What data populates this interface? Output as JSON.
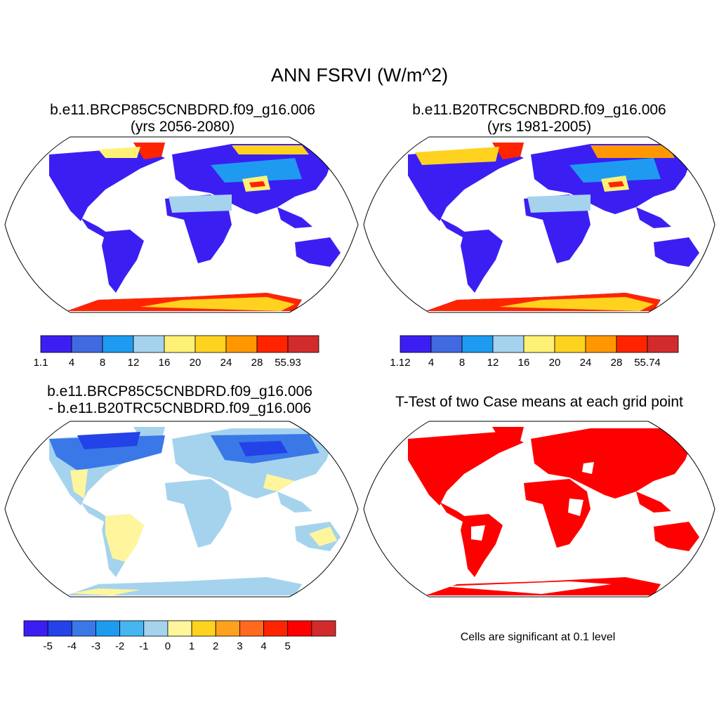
{
  "title": "ANN FSRVI (W/m^2)",
  "panels": [
    {
      "line1": "b.e11.BRCP85C5CNBDRD.f09_g16.006",
      "line2": "(yrs 2056-2080)"
    },
    {
      "line1": "b.e11.B20TRC5CNBDRD.f09_g16.006",
      "line2": "(yrs 1981-2005)"
    },
    {
      "line1": "b.e11.BRCP85C5CNBDRD.f09_g16.006",
      "line2": "- b.e11.B20TRC5CNBDRD.f09_g16.006"
    },
    {
      "line1": "T-Test of two Case means at each grid point",
      "line2": ""
    }
  ],
  "note": "Cells are significant at 0.1 level",
  "colorbars": [
    {
      "labels": [
        "1.1",
        "4",
        "8",
        "12",
        "16",
        "20",
        "24",
        "28",
        "55.93"
      ],
      "colors": [
        "#3b1ff2",
        "#4169e1",
        "#1e9bf0",
        "#a5d3ee",
        "#fff176",
        "#ffd21f",
        "#ff9800",
        "#ff2400",
        "#d22b2b"
      ]
    },
    {
      "labels": [
        "1.12",
        "4",
        "8",
        "12",
        "16",
        "20",
        "24",
        "28",
        "55.74"
      ],
      "colors": [
        "#3b1ff2",
        "#4169e1",
        "#1e9bf0",
        "#a5d3ee",
        "#fff176",
        "#ffd21f",
        "#ff9800",
        "#ff2400",
        "#d22b2b"
      ]
    },
    {
      "labels": [
        "-5",
        "-4",
        "-3",
        "-2",
        "-1",
        "0",
        "1",
        "2",
        "3",
        "4",
        "5"
      ],
      "colors": [
        "#3b1ff2",
        "#2342e8",
        "#3a78e8",
        "#1e9bf0",
        "#45b6f0",
        "#a5d3ee",
        "#fff59d",
        "#ffd21f",
        "#ffa11f",
        "#ff6a1f",
        "#ff2400",
        "#ff0000",
        "#d22b2b"
      ]
    }
  ],
  "map_colors": {
    "land_low": "#3b1ff2",
    "land_mid": "#1e9bf0",
    "land_light": "#a5d3ee",
    "snow_high": "#ff2400",
    "snow_mid": "#ffd21f",
    "diff_pos": "#fff59d",
    "ttest": "#ff0000"
  }
}
